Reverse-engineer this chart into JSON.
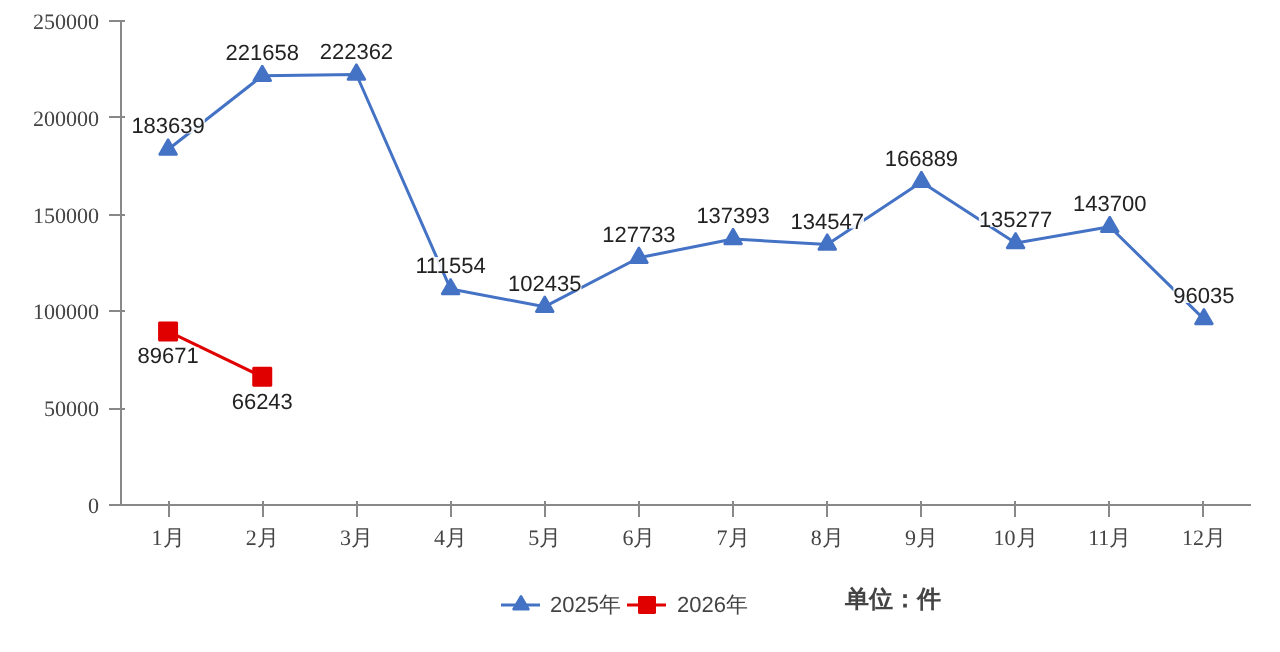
{
  "chart_data": {
    "type": "line",
    "categories": [
      "1月",
      "2月",
      "3月",
      "4月",
      "5月",
      "6月",
      "7月",
      "8月",
      "9月",
      "10月",
      "11月",
      "12月"
    ],
    "series": [
      {
        "name": "2025年",
        "color": "#4472c4",
        "marker": "triangle",
        "values": [
          183639,
          221658,
          222362,
          111554,
          102435,
          127733,
          137393,
          134547,
          166889,
          135277,
          143700,
          96035
        ]
      },
      {
        "name": "2026年",
        "color": "#e00000",
        "marker": "square",
        "values": [
          89671,
          66243,
          null,
          null,
          null,
          null,
          null,
          null,
          null,
          null,
          null,
          null
        ]
      }
    ],
    "ylim": [
      0,
      250000
    ],
    "yticks": [
      0,
      50000,
      100000,
      150000,
      200000,
      250000
    ],
    "grid": false,
    "legend": "bottom",
    "data_labels": true,
    "annotations": [
      "单位：件"
    ]
  }
}
